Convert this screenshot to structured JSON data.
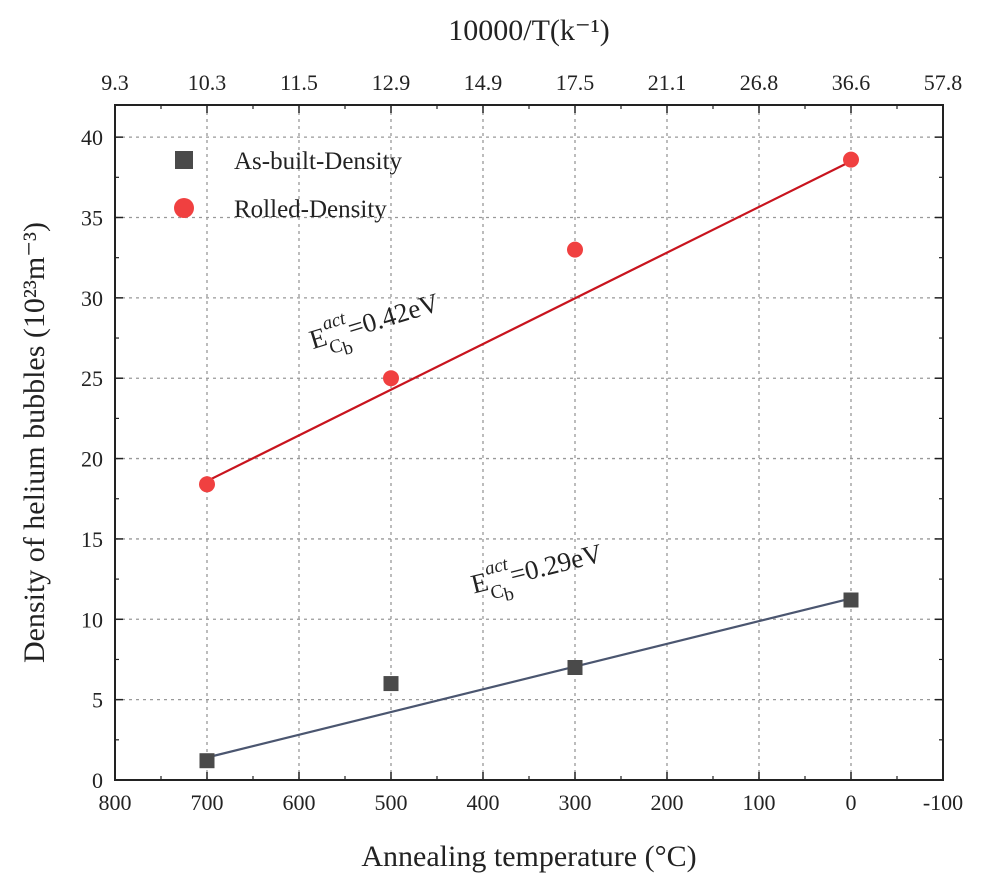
{
  "chart_data": {
    "type": "scatter",
    "title": "",
    "xlabel": "Annealing temperature (°C)",
    "ylabel": "Density of helium bubbles (10²³m⁻³)",
    "top_xlabel": "10000/T(k⁻¹)",
    "xlim": [
      800,
      -100
    ],
    "ylim": [
      0,
      42
    ],
    "grid": true,
    "x_ticks": [
      800,
      700,
      600,
      500,
      400,
      300,
      200,
      100,
      0,
      -100
    ],
    "x_tick_labels": [
      "800",
      "700",
      "600",
      "500",
      "400",
      "300",
      "200",
      "100",
      "0",
      "-100"
    ],
    "y_ticks": [
      0,
      5,
      10,
      15,
      20,
      25,
      30,
      35,
      40
    ],
    "y_tick_labels": [
      "0",
      "5",
      "10",
      "15",
      "20",
      "25",
      "30",
      "35",
      "40"
    ],
    "top_ticks": [
      800,
      700,
      600,
      500,
      400,
      300,
      200,
      100,
      0,
      -100
    ],
    "top_tick_labels": [
      "9.3",
      "10.3",
      "11.5",
      "12.9",
      "14.9",
      "17.5",
      "21.1",
      "26.8",
      "36.6",
      "57.8"
    ],
    "legend_position": "top-left",
    "series": [
      {
        "name": "As-built-Density",
        "marker": "square",
        "color": "#4a4a4a",
        "line_color": "#4b5670",
        "x": [
          700,
          500,
          300,
          0
        ],
        "y": [
          1.2,
          6.0,
          7.0,
          11.2
        ],
        "fit": {
          "x": [
            700,
            0
          ],
          "y": [
            1.4,
            11.3
          ]
        },
        "annotation": {
          "prefix": "E",
          "sub": "C",
          "subsub": "b",
          "sup": "act",
          "value": "=0.29eV",
          "x": 410,
          "y": 11.6,
          "angle": -14
        }
      },
      {
        "name": "Rolled-Density",
        "marker": "circle",
        "color": "#f04040",
        "line_color": "#c8141e",
        "x": [
          700,
          500,
          300,
          0
        ],
        "y": [
          18.4,
          25.0,
          33.0,
          38.6
        ],
        "fit": {
          "x": [
            700,
            0
          ],
          "y": [
            18.6,
            38.5
          ]
        },
        "annotation": {
          "prefix": "E",
          "sub": "C",
          "subsub": "b",
          "sup": "act",
          "value": "=0.42eV",
          "x": 585,
          "y": 26.8,
          "angle": -17
        }
      }
    ]
  }
}
